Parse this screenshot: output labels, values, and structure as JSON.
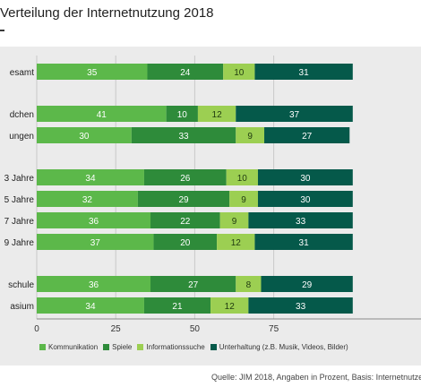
{
  "chart_data": {
    "type": "bar",
    "orientation": "horizontal",
    "stacked": true,
    "title": "Verteilung der Internetnutzung 2018",
    "categories": [
      "esamt",
      "dchen",
      "ungen",
      "3 Jahre",
      "5 Jahre",
      "7 Jahre",
      "9 Jahre",
      "schule",
      "asium"
    ],
    "groups": [
      [
        0
      ],
      [
        1,
        2
      ],
      [
        3,
        4,
        5,
        6
      ],
      [
        7,
        8
      ]
    ],
    "series": [
      {
        "name": "Kommunikation",
        "color": "#5cb84a",
        "values": [
          35,
          41,
          30,
          34,
          32,
          36,
          37,
          36,
          34
        ]
      },
      {
        "name": "Spiele",
        "color": "#2e8b3a",
        "values": [
          24,
          10,
          33,
          26,
          29,
          22,
          20,
          27,
          21
        ]
      },
      {
        "name": "Informationssuche",
        "color": "#9ccf52",
        "values": [
          10,
          12,
          9,
          10,
          9,
          9,
          12,
          8,
          12
        ]
      },
      {
        "name": "Unterhaltung  (z.B. Musik, Videos, Bilder)",
        "color": "#05594a",
        "values": [
          31,
          37,
          27,
          30,
          30,
          33,
          31,
          29,
          33
        ]
      }
    ],
    "xlim": [
      0,
      100
    ],
    "xticks": [
      "0",
      "25",
      "50",
      "75"
    ],
    "grid": true,
    "legend_position": "bottom"
  },
  "source": "Quelle: JIM 2018, Angaben in Prozent, Basis: Internetnutzer"
}
